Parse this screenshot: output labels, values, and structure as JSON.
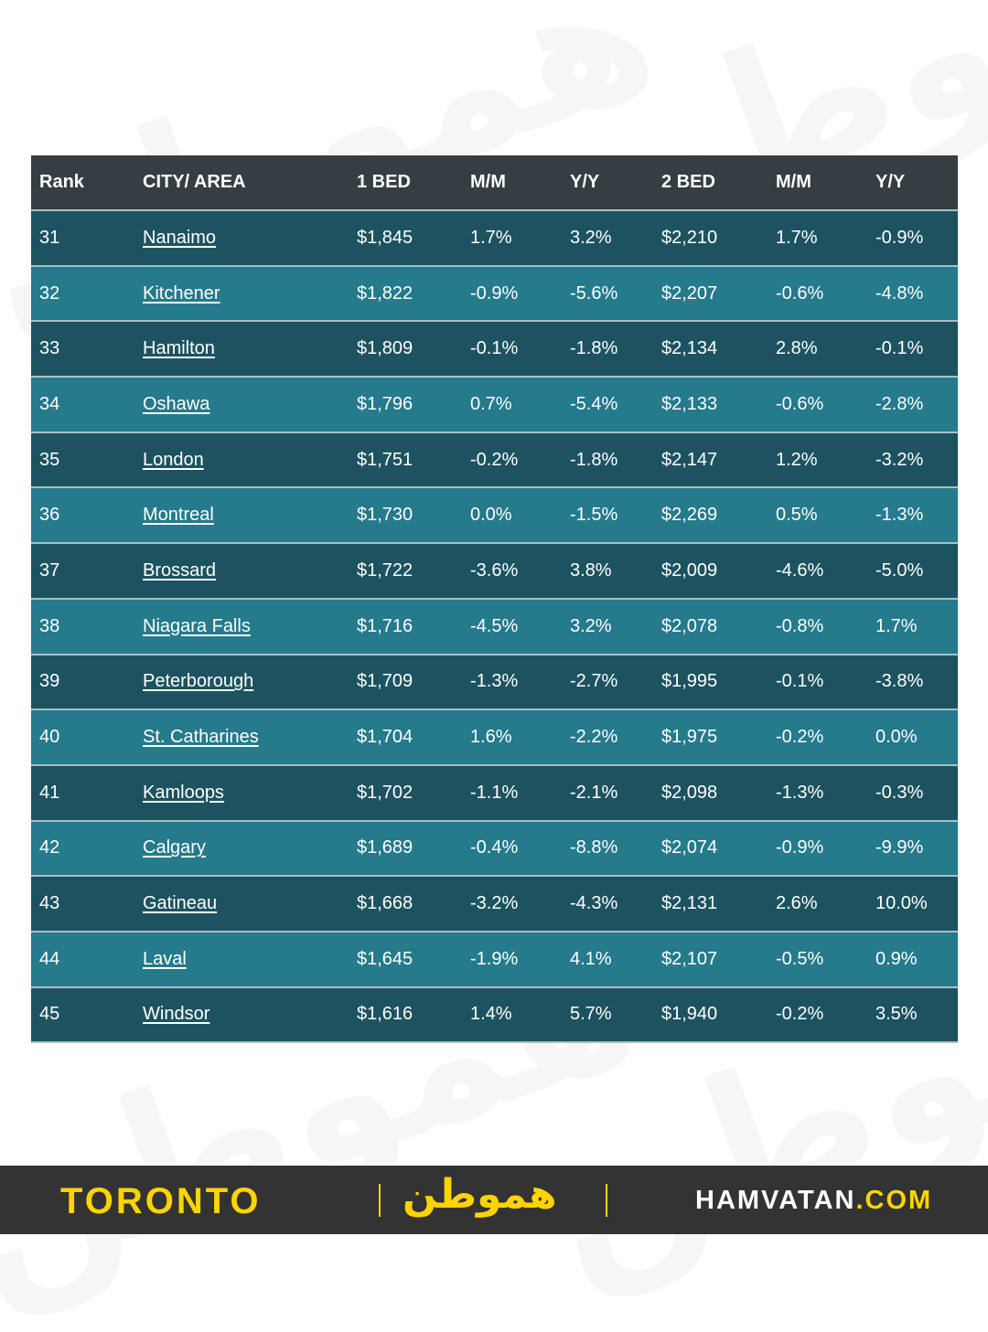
{
  "table": {
    "headers": [
      "Rank",
      "CITY/ AREA",
      "1 BED",
      "M/M",
      "Y/Y",
      "2 BED",
      "M/M",
      "Y/Y"
    ],
    "rows": [
      [
        "31",
        "Nanaimo",
        "$1,845",
        "1.7%",
        "3.2%",
        "$2,210",
        "1.7%",
        "-0.9%"
      ],
      [
        "32",
        "Kitchener",
        "$1,822",
        "-0.9%",
        "-5.6%",
        "$2,207",
        "-0.6%",
        "-4.8%"
      ],
      [
        "33",
        "Hamilton",
        "$1,809",
        "-0.1%",
        "-1.8%",
        "$2,134",
        "2.8%",
        "-0.1%"
      ],
      [
        "34",
        "Oshawa",
        "$1,796",
        "0.7%",
        "-5.4%",
        "$2,133",
        "-0.6%",
        "-2.8%"
      ],
      [
        "35",
        "London",
        "$1,751",
        "-0.2%",
        "-1.8%",
        "$2,147",
        "1.2%",
        "-3.2%"
      ],
      [
        "36",
        "Montreal",
        "$1,730",
        "0.0%",
        "-1.5%",
        "$2,269",
        "0.5%",
        "-1.3%"
      ],
      [
        "37",
        "Brossard",
        "$1,722",
        "-3.6%",
        "3.8%",
        "$2,009",
        "-4.6%",
        "-5.0%"
      ],
      [
        "38",
        "Niagara Falls",
        "$1,716",
        "-4.5%",
        "3.2%",
        "$2,078",
        "-0.8%",
        "1.7%"
      ],
      [
        "39",
        "Peterborough",
        "$1,709",
        "-1.3%",
        "-2.7%",
        "$1,995",
        "-0.1%",
        "-3.8%"
      ],
      [
        "40",
        "St. Catharines",
        "$1,704",
        "1.6%",
        "-2.2%",
        "$1,975",
        "-0.2%",
        "0.0%"
      ],
      [
        "41",
        "Kamloops",
        "$1,702",
        "-1.1%",
        "-2.1%",
        "$2,098",
        "-1.3%",
        "-0.3%"
      ],
      [
        "42",
        "Calgary",
        "$1,689",
        "-0.4%",
        "-8.8%",
        "$2,074",
        "-0.9%",
        "-9.9%"
      ],
      [
        "43",
        "Gatineau",
        "$1,668",
        "-3.2%",
        "-4.3%",
        "$2,131",
        "2.6%",
        "10.0%"
      ],
      [
        "44",
        "Laval",
        "$1,645",
        "-1.9%",
        "4.1%",
        "$2,107",
        "-0.5%",
        "0.9%"
      ],
      [
        "45",
        "Windsor",
        "$1,616",
        "1.4%",
        "5.7%",
        "$1,940",
        "-0.2%",
        "3.5%"
      ]
    ]
  },
  "footer": {
    "city": "TORONTO",
    "logo": "هموطن",
    "site_main": "HAMVATAN",
    "site_domain": ".COM"
  }
}
